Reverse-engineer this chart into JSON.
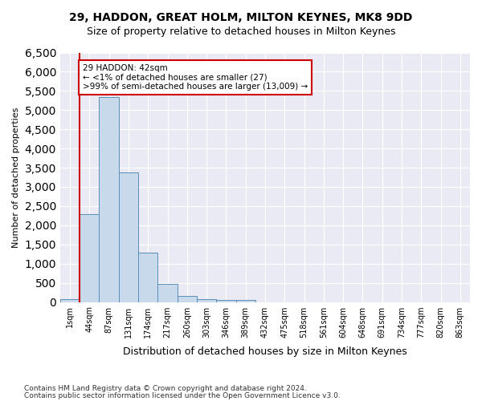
{
  "title1": "29, HADDON, GREAT HOLM, MILTON KEYNES, MK8 9DD",
  "title2": "Size of property relative to detached houses in Milton Keynes",
  "xlabel": "Distribution of detached houses by size in Milton Keynes",
  "ylabel": "Number of detached properties",
  "footer1": "Contains HM Land Registry data © Crown copyright and database right 2024.",
  "footer2": "Contains public sector information licensed under the Open Government Licence v3.0.",
  "annotation_line1": "29 HADDON: 42sqm",
  "annotation_line2": "← <1% of detached houses are smaller (27)",
  "annotation_line3": ">99% of semi-detached houses are larger (13,009) →",
  "bar_values": [
    75,
    2280,
    5350,
    3370,
    1290,
    480,
    165,
    80,
    55,
    55,
    0,
    0,
    0,
    0,
    0,
    0,
    0,
    0,
    0,
    0,
    0
  ],
  "bar_labels": [
    "1sqm",
    "44sqm",
    "87sqm",
    "131sqm",
    "174sqm",
    "217sqm",
    "260sqm",
    "303sqm",
    "346sqm",
    "389sqm",
    "432sqm",
    "475sqm",
    "518sqm",
    "561sqm",
    "604sqm",
    "648sqm",
    "691sqm",
    "734sqm",
    "777sqm",
    "820sqm",
    "863sqm"
  ],
  "bar_color": "#c9d9ec",
  "bar_edge_color": "#5b8db8",
  "bg_color": "#eaeaf4",
  "grid_color": "#ffffff",
  "annotation_box_color": "#cc0000",
  "ylim": [
    0,
    6500
  ],
  "yticks": [
    0,
    500,
    1000,
    1500,
    2000,
    2500,
    3000,
    3500,
    4000,
    4500,
    5000,
    5500,
    6000,
    6500
  ]
}
